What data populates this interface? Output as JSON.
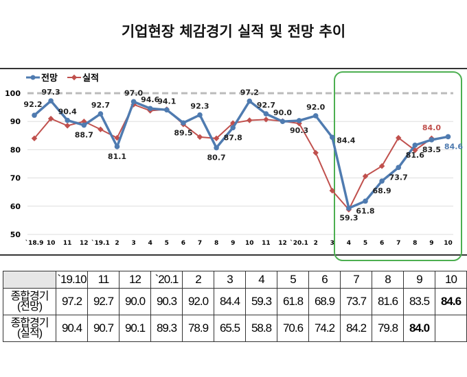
{
  "title": "기업현장 체감경기 실적 및 전망 추이",
  "chart_data": {
    "type": "line",
    "categories": [
      "`18.9",
      "10",
      "11",
      "12",
      "`19.1",
      "2",
      "3",
      "4",
      "5",
      "6",
      "7",
      "8",
      "9",
      "10",
      "11",
      "12",
      "`20.1",
      "2",
      "3",
      "4",
      "5",
      "6",
      "7",
      "8",
      "9",
      "10"
    ],
    "series": [
      {
        "name": "전망",
        "color": "#4f7bb0",
        "values": [
          92.2,
          97.3,
          90.4,
          88.7,
          92.7,
          81.1,
          97.0,
          94.6,
          94.1,
          89.5,
          92.3,
          80.7,
          87.8,
          97.2,
          92.7,
          90.0,
          90.3,
          92.0,
          84.4,
          59.3,
          61.8,
          68.9,
          73.7,
          81.6,
          83.5,
          84.6
        ]
      },
      {
        "name": "실적",
        "color": "#c0504d",
        "values": [
          84.0,
          91.0,
          88.5,
          90.0,
          87.2,
          84.2,
          96.0,
          93.8,
          94.3,
          89.0,
          84.5,
          84.0,
          89.4,
          90.4,
          90.7,
          90.1,
          89.3,
          78.9,
          65.5,
          58.8,
          70.6,
          74.2,
          84.2,
          79.8,
          84.0,
          null
        ]
      }
    ],
    "yticks": [
      50,
      60,
      70,
      80,
      90,
      100
    ],
    "ylim": [
      50,
      100
    ],
    "reference_line": 100,
    "labels_forecast": [
      "92.2",
      "97.3",
      "90.4",
      "88.7",
      "92.7",
      "81.1",
      "97.0",
      "94.6",
      "94.1",
      "89.5",
      "92.3",
      "80.7",
      "87.8",
      "97.2",
      "92.7",
      "90.0",
      "90.3",
      "92.0",
      "84.4",
      "59.3",
      "61.8",
      "68.9",
      "73.7",
      "81.6",
      "83.5",
      "84.6"
    ],
    "label_actual_last": "84.0",
    "highlight_color": "#4caf50",
    "legend": "top-left"
  },
  "table": {
    "header": [
      "`19.10",
      "11",
      "12",
      "`20.1",
      "2",
      "3",
      "4",
      "5",
      "6",
      "7",
      "8",
      "9",
      "10"
    ],
    "rows": [
      {
        "label1": "종합경기",
        "label2": "(전망)",
        "values": [
          "97.2",
          "92.7",
          "90.0",
          "90.3",
          "92.0",
          "84.4",
          "59.3",
          "61.8",
          "68.9",
          "73.7",
          "81.6",
          "83.5",
          "84.6"
        ]
      },
      {
        "label1": "종합경기",
        "label2": "(실적)",
        "values": [
          "90.4",
          "90.7",
          "90.1",
          "89.3",
          "78.9",
          "65.5",
          "58.8",
          "70.6",
          "74.2",
          "84.2",
          "79.8",
          "84.0",
          ""
        ]
      }
    ]
  }
}
